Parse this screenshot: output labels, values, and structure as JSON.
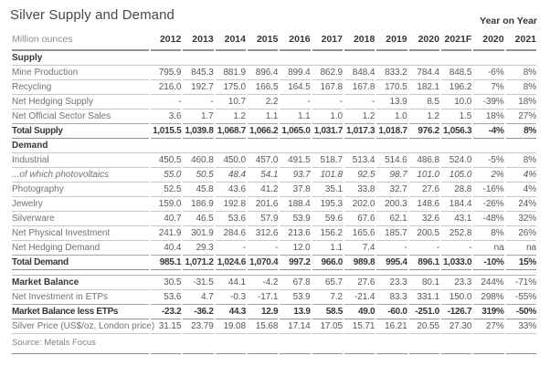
{
  "title": "Silver Supply and Demand",
  "header": {
    "yoy_label": "Year on Year",
    "unit_label": "Million ounces"
  },
  "source": "Source: Metals Focus",
  "colors": {
    "heading_text": "#45494d",
    "emphasis_text": "#34383c",
    "label_text": "#6f7377",
    "value_text": "#55595d",
    "rule_light": "#c7cacd",
    "rule_dark": "#8f9398"
  },
  "chart_data": {
    "type": "table",
    "title": "Silver Supply and Demand",
    "unit": "Million ounces",
    "columns": [
      "2012",
      "2013",
      "2014",
      "2015",
      "2016",
      "2017",
      "2018",
      "2019",
      "2020",
      "2021F",
      "2020",
      "2021"
    ],
    "column_note": "last two columns are Year on Year percentage changes",
    "rows": [
      {
        "label": "Supply",
        "style": "section"
      },
      {
        "label": "Mine Production",
        "style": "normal",
        "values": [
          "795.9",
          "845.3",
          "881.9",
          "896.4",
          "899.4",
          "862.9",
          "848.4",
          "833.2",
          "784.4",
          "848.5",
          "-6%",
          "8%"
        ]
      },
      {
        "label": "Recycling",
        "style": "normal",
        "values": [
          "216.0",
          "192.7",
          "175.0",
          "166.5",
          "164.5",
          "167.8",
          "167.8",
          "170.5",
          "182.1",
          "196.2",
          "7%",
          "8%"
        ]
      },
      {
        "label": "Net Hedging Supply",
        "style": "normal",
        "values": [
          "-",
          "-",
          "10.7",
          "2.2",
          "-",
          "-",
          "-",
          "13.9",
          "8.5",
          "10.0",
          "-39%",
          "18%"
        ]
      },
      {
        "label": "Net Official Sector Sales",
        "style": "normal",
        "values": [
          "3.6",
          "1.7",
          "1.2",
          "1.1",
          "1.1",
          "1.0",
          "1.2",
          "1.0",
          "1.2",
          "1.5",
          "18%",
          "27%"
        ]
      },
      {
        "label": "Total Supply",
        "style": "total",
        "values": [
          "1,015.5",
          "1,039.8",
          "1,068.7",
          "1,066.2",
          "1,065.0",
          "1,031.7",
          "1,017.3",
          "1,018.7",
          "976.2",
          "1,056.3",
          "-4%",
          "8%"
        ]
      },
      {
        "label": "Demand",
        "style": "section"
      },
      {
        "label": "Industrial",
        "style": "normal",
        "values": [
          "450.5",
          "460.8",
          "450.0",
          "457.0",
          "491.5",
          "518.7",
          "513.4",
          "514.6",
          "486.8",
          "524.0",
          "-5%",
          "8%"
        ]
      },
      {
        "label": "...of which photovoltaics",
        "style": "italic",
        "values": [
          "55.0",
          "50.5",
          "48.4",
          "54.1",
          "93.7",
          "101.8",
          "92.5",
          "98.7",
          "101.0",
          "105.0",
          "2%",
          "4%"
        ]
      },
      {
        "label": "Photography",
        "style": "normal",
        "values": [
          "52.5",
          "45.8",
          "43.6",
          "41.2",
          "37.8",
          "35.1",
          "33.8",
          "32.7",
          "27.6",
          "28.8",
          "-16%",
          "4%"
        ]
      },
      {
        "label": "Jewelry",
        "style": "normal",
        "values": [
          "159.0",
          "186.9",
          "192.8",
          "201.6",
          "188.4",
          "195.3",
          "202.0",
          "200.3",
          "148.6",
          "184.4",
          "-26%",
          "24%"
        ]
      },
      {
        "label": "Silverware",
        "style": "normal",
        "values": [
          "40.7",
          "46.5",
          "53.6",
          "57.9",
          "53.9",
          "59.6",
          "67.6",
          "62.1",
          "32.6",
          "43.1",
          "-48%",
          "32%"
        ]
      },
      {
        "label": "Net Physical Investment",
        "style": "normal",
        "values": [
          "241.9",
          "301.9",
          "284.6",
          "312.6",
          "213.6",
          "156.2",
          "165.6",
          "185.7",
          "200.5",
          "252.8",
          "8%",
          "26%"
        ]
      },
      {
        "label": "Net Hedging Demand",
        "style": "normal",
        "values": [
          "40.4",
          "29.3",
          "-",
          "-",
          "12.0",
          "1.1",
          "7.4",
          "-",
          "-",
          "-",
          "na",
          "na"
        ]
      },
      {
        "label": "Total Demand",
        "style": "total",
        "values": [
          "985.1",
          "1,071.2",
          "1,024.6",
          "1,070.4",
          "997.2",
          "966.0",
          "989.8",
          "995.4",
          "896.1",
          "1,033.0",
          "-10%",
          "15%"
        ]
      },
      {
        "style": "spacer"
      },
      {
        "label": "Market Balance",
        "style": "label-bold",
        "values": [
          "30.5",
          "-31.5",
          "44.1",
          "-4.2",
          "67.8",
          "65.7",
          "27.6",
          "23.3",
          "80.1",
          "23.3",
          "244%",
          "-71%"
        ]
      },
      {
        "label": "Net Investment in ETPs",
        "style": "normal",
        "values": [
          "53.6",
          "4.7",
          "-0.3",
          "-17.1",
          "53.9",
          "7.2",
          "-21.4",
          "83.3",
          "331.1",
          "150.0",
          "298%",
          "-55%"
        ]
      },
      {
        "label": "Market Balance less ETPs",
        "style": "total",
        "values": [
          "-23.2",
          "-36.2",
          "44.3",
          "12.9",
          "13.9",
          "58.5",
          "49.0",
          "-60.0",
          "-251.0",
          "-126.7",
          "319%",
          "-50%"
        ]
      },
      {
        "label": "Silver Price (US$/oz, London price)",
        "style": "normal",
        "values": [
          "31.15",
          "23.79",
          "19.08",
          "15.68",
          "17.14",
          "17.05",
          "15.71",
          "16.21",
          "20.55",
          "27.30",
          "27%",
          "33%"
        ]
      }
    ]
  }
}
